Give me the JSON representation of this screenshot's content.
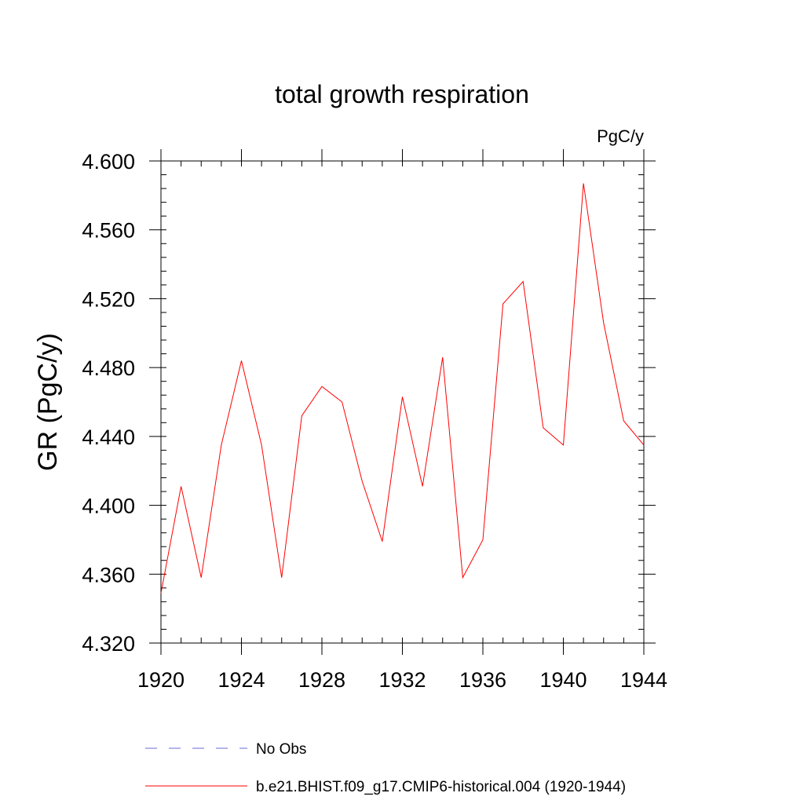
{
  "chart_data": {
    "type": "line",
    "title": "total growth respiration",
    "units_label": "PgC/y",
    "ylabel": "GR  (PgC/y)",
    "xlabel": "",
    "xlim": [
      1920,
      1944
    ],
    "ylim": [
      4.32,
      4.6
    ],
    "x_ticks": [
      "1920",
      "1924",
      "1928",
      "1932",
      "1936",
      "1940",
      "1944"
    ],
    "y_ticks": [
      "4.320",
      "4.360",
      "4.400",
      "4.440",
      "4.480",
      "4.520",
      "4.560",
      "4.600"
    ],
    "x": [
      1920,
      1921,
      1922,
      1923,
      1924,
      1925,
      1926,
      1927,
      1928,
      1929,
      1930,
      1931,
      1932,
      1933,
      1934,
      1935,
      1936,
      1937,
      1938,
      1939,
      1940,
      1941,
      1942,
      1943,
      1944
    ],
    "series": [
      {
        "name": "b.e21.BHIST.f09_g17.CMIP6-historical.004 (1920-1944)",
        "color": "#ff0000",
        "style": "solid",
        "values": [
          4.349,
          4.411,
          4.358,
          4.435,
          4.484,
          4.435,
          4.358,
          4.452,
          4.469,
          4.46,
          4.414,
          4.379,
          4.463,
          4.411,
          4.486,
          4.358,
          4.38,
          4.517,
          4.53,
          4.445,
          4.435,
          4.587,
          4.506,
          4.449,
          4.435
        ]
      }
    ],
    "legend": [
      {
        "label": "No Obs",
        "color": "#6a6ad8",
        "style": "dashed"
      },
      {
        "label": "b.e21.BHIST.f09_g17.CMIP6-historical.004 (1920-1944)",
        "color": "#ff0000",
        "style": "solid"
      }
    ],
    "legend_position": "bottom"
  }
}
